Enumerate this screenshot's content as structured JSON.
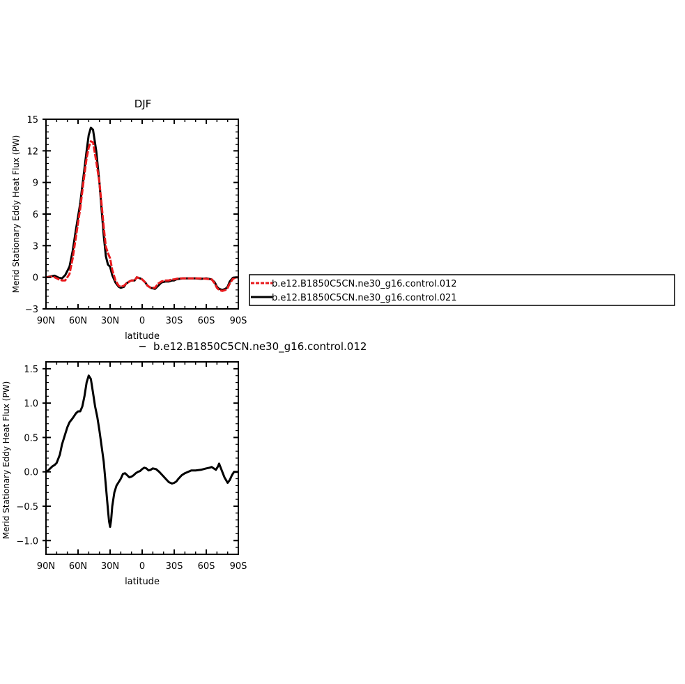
{
  "legend": {
    "entries": [
      {
        "label": "b.e12.B1850C5CN.ne30_g16.control.012",
        "color": "#e8191c",
        "dashed": true
      },
      {
        "label": "b.e12.B1850C5CN.ne30_g16.control.021",
        "color": "#000000",
        "dashed": false
      }
    ]
  },
  "chart_data": [
    {
      "type": "line",
      "title": "DJF",
      "xlabel": "latitude",
      "ylabel": "Merid Stationary Eddy Heat Flux (PW)",
      "xlim": [
        90,
        -90
      ],
      "ylim": [
        -3,
        15
      ],
      "x_tick_values": [
        90,
        60,
        30,
        0,
        -30,
        -60,
        -90
      ],
      "x_tick_labels": [
        "90N",
        "60N",
        "30N",
        "0",
        "30S",
        "60S",
        "90S"
      ],
      "y_tick_values": [
        -3,
        0,
        3,
        6,
        9,
        12,
        15
      ],
      "y_tick_labels": [
        "−3",
        "0",
        "3",
        "6",
        "9",
        "12",
        "15"
      ],
      "series": [
        {
          "name": "b.e12.B1850C5CN.ne30_g16.control.021",
          "color": "#000000",
          "dashed": false,
          "x": [
            90,
            85,
            82,
            78,
            75,
            72,
            68,
            65,
            62,
            58,
            55,
            52,
            50,
            48,
            46,
            43,
            40,
            38,
            36,
            34,
            32,
            30,
            28,
            25,
            22,
            20,
            17,
            15,
            12,
            10,
            7,
            5,
            2,
            0,
            -3,
            -5,
            -8,
            -12,
            -15,
            -18,
            -22,
            -25,
            -28,
            -30,
            -32,
            -35,
            -38,
            -42,
            -45,
            -50,
            -55,
            -60,
            -65,
            -68,
            -70,
            -72,
            -75,
            -78,
            -80,
            -82,
            -85,
            -88,
            -90
          ],
          "y": [
            0.0,
            0.1,
            0.15,
            -0.05,
            -0.1,
            0.2,
            1.0,
            2.5,
            4.5,
            7.0,
            9.5,
            12.0,
            13.5,
            14.2,
            14.0,
            12.0,
            9.0,
            6.5,
            4.0,
            2.0,
            1.2,
            1.0,
            0.2,
            -0.5,
            -0.9,
            -1.0,
            -0.9,
            -0.6,
            -0.4,
            -0.3,
            -0.3,
            0.0,
            -0.1,
            -0.2,
            -0.5,
            -0.8,
            -1.0,
            -1.1,
            -0.8,
            -0.5,
            -0.4,
            -0.4,
            -0.3,
            -0.3,
            -0.2,
            -0.15,
            -0.1,
            -0.1,
            -0.1,
            -0.1,
            -0.15,
            -0.1,
            -0.2,
            -0.5,
            -0.9,
            -1.1,
            -1.2,
            -1.1,
            -0.9,
            -0.4,
            -0.05,
            0.0,
            0.0
          ]
        },
        {
          "name": "b.e12.B1850C5CN.ne30_g16.control.012",
          "color": "#e8191c",
          "dashed": true,
          "x": [
            90,
            85,
            82,
            78,
            75,
            72,
            68,
            65,
            62,
            58,
            55,
            52,
            50,
            48,
            46,
            43,
            40,
            38,
            36,
            34,
            32,
            30,
            28,
            25,
            22,
            20,
            17,
            15,
            12,
            10,
            7,
            5,
            2,
            0,
            -3,
            -5,
            -8,
            -12,
            -15,
            -18,
            -22,
            -25,
            -28,
            -30,
            -32,
            -35,
            -38,
            -42,
            -45,
            -50,
            -55,
            -60,
            -65,
            -68,
            -70,
            -72,
            -75,
            -78,
            -80,
            -82,
            -85,
            -88,
            -90
          ],
          "y": [
            0.0,
            0.05,
            0.0,
            -0.2,
            -0.3,
            -0.3,
            0.3,
            1.8,
            3.8,
            6.5,
            9.0,
            11.3,
            12.3,
            12.9,
            12.8,
            11.0,
            9.0,
            7.0,
            4.8,
            2.9,
            2.3,
            1.8,
            0.7,
            -0.3,
            -0.8,
            -0.9,
            -0.8,
            -0.6,
            -0.4,
            -0.3,
            -0.3,
            0.0,
            -0.1,
            -0.2,
            -0.5,
            -0.8,
            -1.0,
            -1.0,
            -0.6,
            -0.4,
            -0.3,
            -0.3,
            -0.2,
            -0.2,
            -0.15,
            -0.1,
            -0.1,
            -0.1,
            -0.1,
            -0.1,
            -0.1,
            -0.15,
            -0.2,
            -0.6,
            -1.0,
            -1.2,
            -1.3,
            -1.2,
            -1.0,
            -0.6,
            -0.15,
            0.0,
            0.0
          ]
        }
      ]
    },
    {
      "type": "line",
      "title": "b.e12.B1850C5CN.ne30_g16.control.012",
      "xlabel": "latitude",
      "ylabel": "Merid Stationary Eddy Heat Flux (PW)",
      "xlim": [
        90,
        -90
      ],
      "ylim": [
        -1.2,
        1.6
      ],
      "x_tick_values": [
        90,
        60,
        30,
        0,
        -30,
        -60,
        -90
      ],
      "x_tick_labels": [
        "90N",
        "60N",
        "30N",
        "0",
        "30S",
        "60S",
        "90S"
      ],
      "y_tick_values": [
        -1.0,
        -0.5,
        0.0,
        0.5,
        1.0,
        1.5
      ],
      "y_tick_labels": [
        "−1.0",
        "−0.5",
        "0.0",
        "0.5",
        "1.0",
        "1.5"
      ],
      "series": [
        {
          "name": "",
          "color": "#000000",
          "dashed": false,
          "x": [
            90,
            88,
            86,
            84,
            82,
            80,
            77,
            75,
            72,
            70,
            68,
            65,
            62,
            60,
            58,
            56,
            54,
            52,
            50,
            48,
            46,
            44,
            42,
            40,
            38,
            36,
            34,
            32,
            31,
            30,
            29,
            28,
            26,
            24,
            22,
            20,
            18,
            16,
            14,
            12,
            10,
            8,
            6,
            4,
            2,
            0,
            -2,
            -4,
            -6,
            -8,
            -10,
            -13,
            -16,
            -19,
            -22,
            -25,
            -28,
            -30,
            -32,
            -34,
            -37,
            -40,
            -43,
            -46,
            -50,
            -55,
            -60,
            -63,
            -65,
            -67,
            -69,
            -71,
            -72,
            -73,
            -74,
            -75,
            -77,
            -80,
            -82,
            -84,
            -86,
            -88,
            -90
          ],
          "y": [
            0.0,
            0.02,
            0.05,
            0.08,
            0.1,
            0.13,
            0.25,
            0.4,
            0.55,
            0.65,
            0.72,
            0.78,
            0.85,
            0.88,
            0.88,
            0.95,
            1.1,
            1.3,
            1.4,
            1.35,
            1.15,
            0.95,
            0.8,
            0.6,
            0.38,
            0.15,
            -0.2,
            -0.55,
            -0.72,
            -0.8,
            -0.7,
            -0.5,
            -0.3,
            -0.2,
            -0.15,
            -0.1,
            -0.03,
            -0.02,
            -0.05,
            -0.08,
            -0.07,
            -0.05,
            -0.02,
            0.0,
            0.01,
            0.04,
            0.06,
            0.05,
            0.02,
            0.03,
            0.05,
            0.04,
            0.0,
            -0.05,
            -0.1,
            -0.15,
            -0.17,
            -0.16,
            -0.14,
            -0.1,
            -0.05,
            -0.02,
            0.0,
            0.02,
            0.02,
            0.03,
            0.05,
            0.06,
            0.07,
            0.05,
            0.03,
            0.08,
            0.12,
            0.08,
            0.04,
            0.0,
            -0.08,
            -0.16,
            -0.12,
            -0.05,
            0.0,
            0.0,
            0.0
          ]
        }
      ]
    }
  ]
}
